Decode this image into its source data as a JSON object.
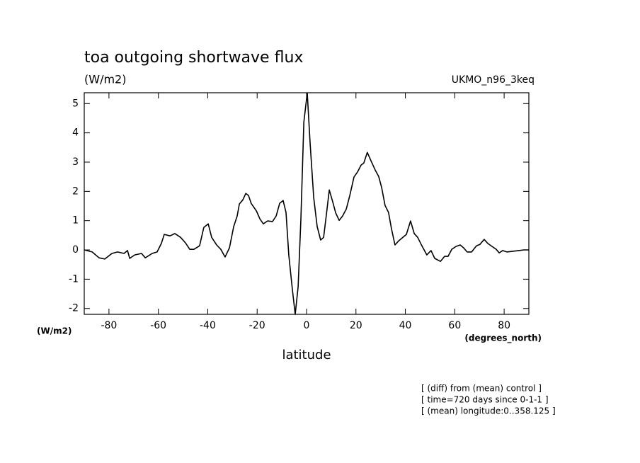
{
  "chart_data": {
    "type": "line",
    "title": "toa outgoing shortwave flux",
    "subtitle": "(W/m2)",
    "model_label": "UKMO_n96_3keq",
    "y_unit_label": "(W/m2)",
    "x_unit_label": "(degrees_north)",
    "x_label": "latitude",
    "notes": [
      "[ (diff) from (mean) control ]",
      "[ time=720 days since 0-1-1 ]",
      "[ (mean) longitude:0..358.125 ]"
    ],
    "xlim": [
      -90,
      90
    ],
    "ylim": [
      -2.2,
      5.37
    ],
    "xticks": [
      -80,
      -60,
      -40,
      -20,
      0,
      20,
      40,
      60,
      80
    ],
    "yticks": [
      -2,
      -1,
      0,
      1,
      2,
      3,
      4,
      5
    ],
    "color": "#000000",
    "x": [
      -90,
      -86.8,
      -84.0,
      -81.7,
      -78.8,
      -76.5,
      -73.9,
      -72.5,
      -71.6,
      -69.6,
      -66.8,
      -65.3,
      -62.5,
      -60.5,
      -58.8,
      -57.6,
      -55.3,
      -53.3,
      -51.0,
      -49.0,
      -47.3,
      -45.6,
      -43.3,
      -41.6,
      -39.8,
      -38.4,
      -36.4,
      -34.7,
      -33.0,
      -31.2,
      -29.5,
      -28.1,
      -27.2,
      -25.8,
      -24.6,
      -23.5,
      -22.4,
      -20.3,
      -18.9,
      -17.5,
      -15.8,
      -13.8,
      -12.3,
      -10.9,
      -9.5,
      -8.3,
      -7.2,
      -5.7,
      -4.6,
      -3.4,
      -2.3,
      -1.1,
      0.3,
      1.4,
      2.9,
      4.3,
      5.7,
      6.9,
      8.0,
      9.2,
      10.6,
      11.8,
      13.2,
      14.6,
      16.1,
      17.5,
      19.2,
      20.6,
      22.1,
      23.2,
      24.6,
      26.1,
      27.8,
      29.2,
      30.4,
      31.8,
      33.2,
      34.4,
      35.8,
      37.3,
      38.7,
      40.4,
      42.1,
      43.6,
      45.0,
      46.4,
      48.7,
      50.4,
      51.9,
      54.2,
      55.9,
      57.3,
      58.8,
      60.5,
      62.2,
      63.6,
      65.0,
      66.8,
      68.8,
      70.2,
      71.9,
      73.4,
      75.1,
      76.8,
      78.0,
      79.4,
      81.1,
      83.1,
      86.0,
      88.0,
      90
    ],
    "values": [
      0,
      -0.07,
      -0.27,
      -0.31,
      -0.12,
      -0.07,
      -0.12,
      -0.02,
      -0.29,
      -0.17,
      -0.12,
      -0.27,
      -0.12,
      -0.07,
      0.22,
      0.53,
      0.48,
      0.56,
      0.43,
      0.24,
      0.02,
      0.02,
      0.14,
      0.77,
      0.89,
      0.43,
      0.17,
      0.02,
      -0.24,
      0.07,
      0.8,
      1.16,
      1.57,
      1.71,
      1.93,
      1.86,
      1.59,
      1.33,
      1.06,
      0.89,
      0.99,
      0.97,
      1.16,
      1.59,
      1.69,
      1.28,
      -0.17,
      -1.38,
      -2.2,
      -1.26,
      1.04,
      4.37,
      5.36,
      3.7,
      1.79,
      0.8,
      0.34,
      0.43,
      1.18,
      2.05,
      1.64,
      1.26,
      1.01,
      1.16,
      1.4,
      1.86,
      2.49,
      2.66,
      2.9,
      2.97,
      3.33,
      3.04,
      2.73,
      2.51,
      2.13,
      1.52,
      1.28,
      0.72,
      0.17,
      0.31,
      0.41,
      0.53,
      0.99,
      0.56,
      0.43,
      0.19,
      -0.17,
      -0.02,
      -0.29,
      -0.39,
      -0.22,
      -0.22,
      0.02,
      0.12,
      0.17,
      0.07,
      -0.07,
      -0.07,
      0.14,
      0.19,
      0.36,
      0.22,
      0.12,
      0.02,
      -0.1,
      -0.02,
      -0.07,
      -0.05,
      -0.02,
      0,
      0
    ]
  }
}
